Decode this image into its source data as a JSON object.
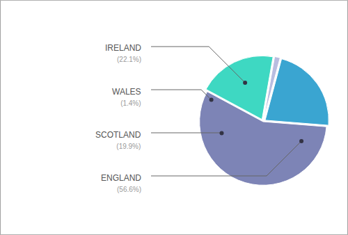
{
  "chart_data": {
    "type": "pie",
    "categories": [
      "IRELAND",
      "WALES",
      "SCOTLAND",
      "ENGLAND"
    ],
    "values": [
      22.1,
      1.4,
      19.9,
      56.6
    ],
    "value_labels": [
      "(22.1%)",
      "(1.4%)",
      "(19.9%)",
      "(56.6%)"
    ],
    "colors": [
      "#3aa5d1",
      "#b9bde0",
      "#3ed8c2",
      "#7d84b6"
    ],
    "data_labels": true
  }
}
